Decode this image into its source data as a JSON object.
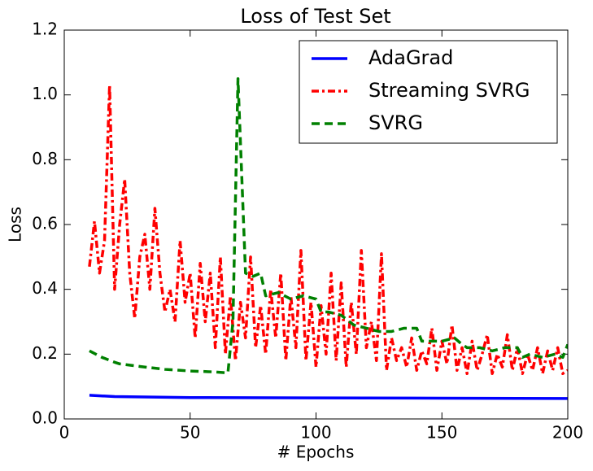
{
  "chart_data": {
    "type": "line",
    "title": "Loss of Test Set",
    "x_label": "# Epochs",
    "y_label": "Loss",
    "xlim": [
      0,
      200
    ],
    "xticks": [
      0,
      50,
      100,
      150,
      200
    ],
    "ylim": [
      0,
      1.2
    ],
    "yticks": [
      {
        "value": 0,
        "label": "0.0"
      },
      0.2,
      0.4,
      0.6,
      0.8,
      {
        "value": 1,
        "label": "1.0"
      },
      1.2
    ],
    "grid": false,
    "legend_position": "upper right",
    "series": [
      {
        "name": "AdaGrad",
        "color": "#0000ff",
        "linestyle": "solid",
        "x": [
          10,
          20,
          50,
          100,
          150,
          200
        ],
        "values": [
          0.073,
          0.069,
          0.066,
          0.065,
          0.064,
          0.063
        ]
      },
      {
        "name": "Streaming SVRG",
        "color": "#ff0000",
        "linestyle": "dashdot",
        "x": [
          10,
          12,
          14,
          16,
          18,
          20,
          22,
          24,
          26,
          28,
          30,
          32,
          34,
          36,
          38,
          40,
          42,
          44,
          46,
          48,
          50,
          52,
          54,
          56,
          58,
          60,
          62,
          64,
          66,
          68,
          70,
          72,
          74,
          76,
          78,
          80,
          82,
          84,
          86,
          88,
          90,
          92,
          94,
          96,
          98,
          100,
          102,
          104,
          106,
          108,
          110,
          112,
          114,
          116,
          118,
          120,
          122,
          124,
          126,
          128,
          130,
          132,
          134,
          136,
          138,
          140,
          142,
          144,
          146,
          148,
          150,
          152,
          154,
          156,
          158,
          160,
          162,
          164,
          166,
          168,
          170,
          172,
          174,
          176,
          178,
          180,
          182,
          184,
          186,
          188,
          190,
          192,
          194,
          196,
          198,
          200
        ],
        "values": [
          0.47,
          0.61,
          0.45,
          0.55,
          1.03,
          0.4,
          0.6,
          0.74,
          0.45,
          0.31,
          0.5,
          0.57,
          0.4,
          0.65,
          0.45,
          0.33,
          0.4,
          0.3,
          0.55,
          0.36,
          0.45,
          0.25,
          0.48,
          0.3,
          0.45,
          0.22,
          0.5,
          0.2,
          0.38,
          0.18,
          0.36,
          0.25,
          0.5,
          0.22,
          0.35,
          0.2,
          0.4,
          0.25,
          0.45,
          0.18,
          0.38,
          0.22,
          0.52,
          0.18,
          0.36,
          0.16,
          0.35,
          0.2,
          0.45,
          0.18,
          0.42,
          0.16,
          0.36,
          0.2,
          0.52,
          0.22,
          0.3,
          0.18,
          0.51,
          0.15,
          0.25,
          0.18,
          0.22,
          0.16,
          0.25,
          0.15,
          0.21,
          0.17,
          0.28,
          0.15,
          0.24,
          0.17,
          0.29,
          0.15,
          0.22,
          0.14,
          0.24,
          0.15,
          0.2,
          0.26,
          0.14,
          0.2,
          0.16,
          0.26,
          0.15,
          0.22,
          0.14,
          0.2,
          0.15,
          0.22,
          0.14,
          0.21,
          0.15,
          0.22,
          0.14,
          0.15
        ]
      },
      {
        "name": "SVRG",
        "color": "#008000",
        "linestyle": "dashed",
        "x": [
          10,
          15,
          20,
          22,
          30,
          40,
          50,
          60,
          65,
          67,
          69,
          72,
          75,
          78,
          80,
          85,
          90,
          95,
          100,
          102,
          105,
          110,
          115,
          120,
          125,
          130,
          135,
          140,
          142,
          145,
          150,
          155,
          158,
          160,
          165,
          170,
          175,
          180,
          182,
          185,
          190,
          195,
          198,
          200
        ],
        "values": [
          0.21,
          0.19,
          0.175,
          0.17,
          0.162,
          0.153,
          0.148,
          0.145,
          0.142,
          0.3,
          1.05,
          0.45,
          0.44,
          0.45,
          0.38,
          0.39,
          0.37,
          0.38,
          0.37,
          0.33,
          0.33,
          0.32,
          0.29,
          0.28,
          0.27,
          0.27,
          0.28,
          0.28,
          0.24,
          0.24,
          0.24,
          0.25,
          0.23,
          0.22,
          0.22,
          0.21,
          0.22,
          0.22,
          0.19,
          0.2,
          0.19,
          0.2,
          0.19,
          0.23
        ]
      }
    ]
  }
}
